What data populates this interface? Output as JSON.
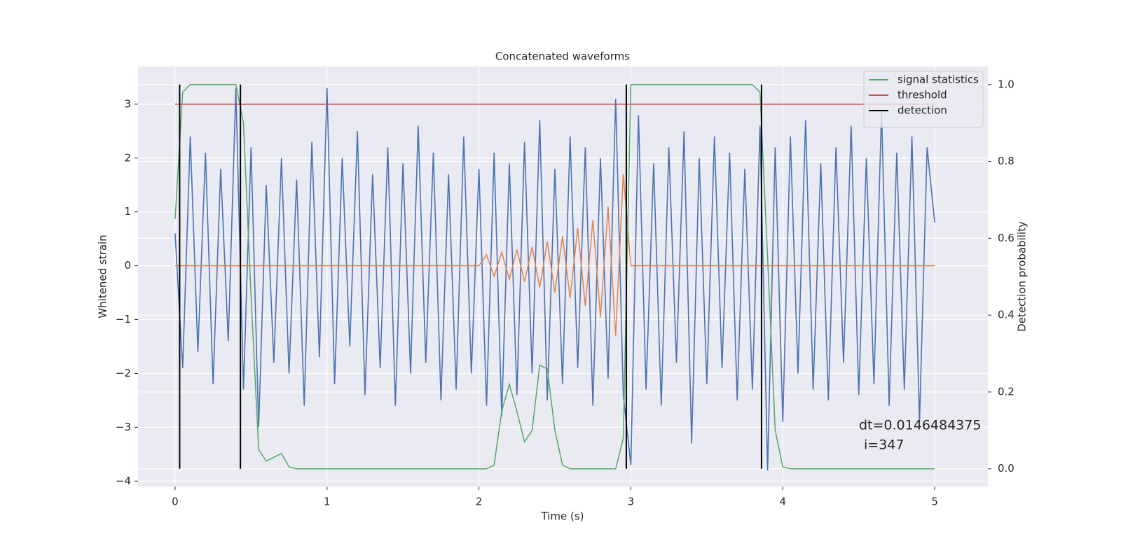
{
  "chart_data": {
    "type": "line",
    "title": "Concatenated waveforms",
    "xlabel": "Time (s)",
    "ylabel": "Whitened strain",
    "y2label": "Detection probability",
    "grid": true,
    "legend": "upper right",
    "xlim": [
      -0.244,
      5.35
    ],
    "xticks": [
      0,
      1,
      2,
      3,
      4,
      5
    ],
    "ylim": [
      -4.1,
      3.7
    ],
    "yticks": [
      {
        "value": -4,
        "label": "−4"
      },
      {
        "value": -3,
        "label": "−3"
      },
      {
        "value": -2,
        "label": "−2"
      },
      {
        "value": -1,
        "label": "−1"
      },
      0,
      1,
      2,
      3
    ],
    "y2lim": [
      -0.046,
      1.047
    ],
    "y2ticks": [
      {
        "value": 0,
        "label": "0.0"
      },
      {
        "value": 0.2,
        "label": "0.2"
      },
      {
        "value": 0.4,
        "label": "0.4"
      },
      {
        "value": 0.6,
        "label": "0.6"
      },
      {
        "value": 0.8,
        "label": "0.8"
      },
      {
        "value": 1,
        "label": "1.0"
      }
    ],
    "x": [
      0,
      0.05,
      0.1,
      0.15,
      0.2,
      0.25,
      0.3,
      0.35,
      0.4,
      0.45,
      0.5,
      0.55,
      0.6,
      0.65,
      0.7,
      0.75,
      0.8,
      0.85,
      0.9,
      0.95,
      1,
      1.05,
      1.1,
      1.15,
      1.2,
      1.25,
      1.3,
      1.35,
      1.4,
      1.45,
      1.5,
      1.55,
      1.6,
      1.65,
      1.7,
      1.75,
      1.8,
      1.85,
      1.9,
      1.95,
      2,
      2.05,
      2.1,
      2.15,
      2.2,
      2.25,
      2.3,
      2.35,
      2.4,
      2.45,
      2.5,
      2.55,
      2.6,
      2.65,
      2.7,
      2.75,
      2.8,
      2.85,
      2.9,
      2.95,
      3,
      3.05,
      3.1,
      3.15,
      3.2,
      3.25,
      3.3,
      3.35,
      3.4,
      3.45,
      3.5,
      3.55,
      3.6,
      3.65,
      3.7,
      3.75,
      3.8,
      3.85,
      3.9,
      3.95,
      4,
      4.05,
      4.1,
      4.15,
      4.2,
      4.25,
      4.3,
      4.35,
      4.4,
      4.45,
      4.5,
      4.55,
      4.6,
      4.65,
      4.7,
      4.75,
      4.8,
      4.85,
      4.9,
      4.95,
      5
    ],
    "series": [
      {
        "color": "#4c72b0",
        "values": [
          0.6,
          -1.9,
          2.4,
          -1.6,
          2.1,
          -2.2,
          1.8,
          -1.4,
          3.3,
          -2.3,
          2.2,
          -3.0,
          1.5,
          -1.8,
          2.0,
          -2.0,
          1.6,
          -2.6,
          2.3,
          -1.7,
          3.3,
          -2.2,
          2.0,
          -1.5,
          2.5,
          -2.4,
          1.7,
          -1.9,
          2.2,
          -2.6,
          1.9,
          -2.0,
          2.6,
          -1.8,
          2.1,
          -2.5,
          1.7,
          -2.3,
          2.4,
          -2.0,
          1.8,
          -2.6,
          2.1,
          -2.8,
          1.9,
          -2.4,
          2.3,
          -2.0,
          2.7,
          -2.5,
          1.8,
          -2.2,
          2.4,
          -1.9,
          2.2,
          -2.6,
          2.0,
          -2.1,
          3.1,
          -2.4,
          -3.7,
          2.8,
          -2.3,
          1.9,
          -2.6,
          2.2,
          -1.8,
          2.5,
          -3.3,
          2.0,
          -2.2,
          2.4,
          -1.9,
          2.1,
          -2.5,
          1.8,
          -2.3,
          2.6,
          -3.8,
          2.2,
          -2.9,
          2.4,
          -2.0,
          2.7,
          -2.3,
          1.9,
          -2.5,
          2.2,
          -1.8,
          2.6,
          -2.4,
          2.0,
          -2.2,
          2.9,
          -2.6,
          2.1,
          -2.3,
          2.4,
          -2.9,
          2.2,
          0.8
        ]
      },
      {
        "color": "#dd8452",
        "values": [
          0,
          0,
          0,
          0,
          0,
          0,
          0,
          0,
          0,
          0,
          0,
          0,
          0,
          0,
          0,
          0,
          0,
          0,
          0,
          0,
          0,
          0,
          0,
          0,
          0,
          0,
          0,
          0,
          0,
          0,
          0,
          0,
          0,
          0,
          0,
          0,
          0,
          0,
          0,
          0,
          0,
          0.2,
          -0.2,
          0.25,
          -0.25,
          0.3,
          -0.3,
          0.35,
          -0.4,
          0.45,
          -0.5,
          0.55,
          -0.6,
          0.7,
          -0.75,
          0.85,
          -0.95,
          1.1,
          -1.3,
          1.7,
          0,
          0,
          0,
          0,
          0,
          0,
          0,
          0,
          0,
          0,
          0,
          0,
          0,
          0,
          0,
          0,
          0,
          0,
          0,
          0,
          0,
          0,
          0,
          0,
          0,
          0,
          0,
          0,
          0,
          0,
          0,
          0,
          0,
          0,
          0,
          0,
          0,
          0,
          0,
          0,
          0
        ]
      },
      {
        "name": "signal statistics",
        "color": "#55a868",
        "axis": "y2",
        "values": [
          0.65,
          0.98,
          1,
          1,
          1,
          1,
          1,
          1,
          1,
          0.9,
          0.45,
          0.05,
          0.02,
          0.03,
          0.04,
          0.005,
          0,
          0,
          0,
          0,
          0,
          0,
          0,
          0,
          0,
          0,
          0,
          0,
          0,
          0,
          0,
          0,
          0,
          0,
          0,
          0,
          0,
          0,
          0,
          0,
          0,
          0,
          0.01,
          0.15,
          0.22,
          0.15,
          0.07,
          0.1,
          0.27,
          0.26,
          0.1,
          0.01,
          0,
          0,
          0,
          0,
          0,
          0,
          0,
          0.08,
          1,
          1,
          1,
          1,
          1,
          1,
          1,
          1,
          1,
          1,
          1,
          1,
          1,
          1,
          1,
          1,
          1,
          0.98,
          0.55,
          0.1,
          0.005,
          0,
          0,
          0,
          0,
          0,
          0,
          0,
          0,
          0,
          0,
          0,
          0,
          0,
          0,
          0,
          0,
          0,
          0,
          0,
          0
        ]
      }
    ],
    "hlines": [
      {
        "name": "threshold",
        "color": "#c44e52",
        "y": 3,
        "xmin": 0,
        "xmax": 5
      }
    ],
    "vlines": [
      {
        "name": "detection",
        "color": "#000000",
        "axis": "y2",
        "x": [
          0.03,
          0.43,
          2.97,
          3.86
        ],
        "ymin": 0,
        "ymax": 1
      }
    ],
    "annotations": [
      "dt=0.0146484375",
      "i=347"
    ]
  }
}
